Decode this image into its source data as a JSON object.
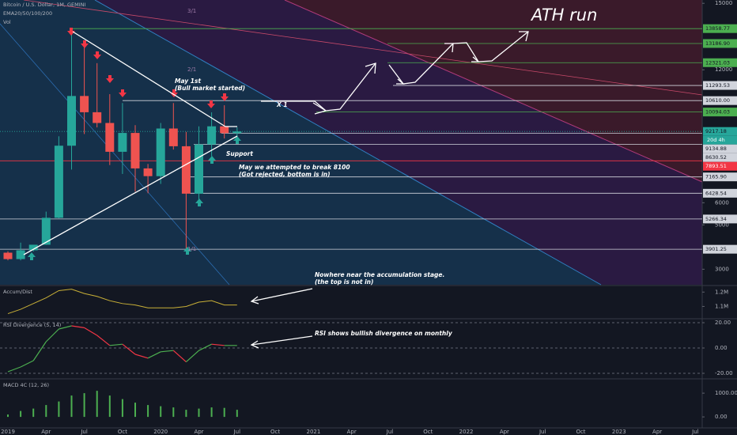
{
  "header": {
    "symbol": "Bitcoin / U.S. Dollar, 1M, GEMINI",
    "ema": "EMA20/50/100/200",
    "vol": "Vol"
  },
  "annotations": {
    "ath": "ATH run",
    "may1": "May 1st",
    "may1b": "(Bull market started)",
    "x1": "X 1",
    "support": "Support",
    "may2": "May we attempted to break 8100",
    "may2b": "(Got rejected, bottom is in)",
    "accum": "Nowhere near the accumulation stage.",
    "accumb": "(the top is not in)",
    "rsi": "RSI shows bullish divergence on monthly",
    "fib3": "3/1",
    "fib2": "2/1",
    "fib1": "1/1"
  },
  "chart_data": [
    {
      "type": "candlestick",
      "x": [
        "2019-01",
        "2019-02",
        "2019-03",
        "2019-04",
        "2019-05",
        "2019-06",
        "2019-07",
        "2019-08",
        "2019-09",
        "2019-10",
        "2019-11",
        "2019-12",
        "2020-01",
        "2020-02",
        "2020-03",
        "2020-04",
        "2020-05",
        "2020-06",
        "2020-07"
      ],
      "open": [
        3746,
        3457,
        3854,
        4105,
        5320,
        8574,
        10818,
        10085,
        9600,
        8300,
        9150,
        7550,
        7200,
        9350,
        8550,
        6410,
        8630,
        9450,
        9140
      ],
      "high": [
        3810,
        4200,
        4100,
        5600,
        9000,
        13880,
        13200,
        12300,
        10900,
        10500,
        9500,
        7750,
        9600,
        10500,
        9200,
        9450,
        10080,
        10400,
        9400
      ],
      "low": [
        3400,
        3400,
        3800,
        4100,
        5300,
        7500,
        9100,
        9400,
        7700,
        7300,
        6500,
        6430,
        6850,
        8400,
        3850,
        6150,
        8100,
        8900,
        8900
      ],
      "close": [
        3457,
        3854,
        4105,
        5320,
        8574,
        10818,
        10085,
        9600,
        8300,
        9150,
        7550,
        7200,
        9350,
        8550,
        6410,
        8630,
        9450,
        9140,
        9217
      ],
      "up_color": "#26a69a",
      "down_color": "#ef5350",
      "ylim": [
        2300,
        15150
      ],
      "yticks": [
        3000,
        5000,
        6000,
        12000,
        15000
      ],
      "xticks": [
        {
          "value": "2019-01",
          "label": "2019"
        },
        {
          "value": "2019-04",
          "label": "Apr"
        },
        {
          "value": "2019-07",
          "label": "Jul"
        },
        {
          "value": "2019-10",
          "label": "Oct"
        },
        {
          "value": "2020-01",
          "label": "2020"
        },
        {
          "value": "2020-04",
          "label": "Apr"
        },
        {
          "value": "2020-07",
          "label": "Jul"
        },
        {
          "value": "2020-10",
          "label": "Oct"
        },
        {
          "value": "2021-01",
          "label": "2021"
        },
        {
          "value": "2021-04",
          "label": "Apr"
        },
        {
          "value": "2021-07",
          "label": "Jul"
        },
        {
          "value": "2021-10",
          "label": "Oct"
        },
        {
          "value": "2022-01",
          "label": "2022"
        },
        {
          "value": "2022-04",
          "label": "Apr"
        },
        {
          "value": "2022-07",
          "label": "Jul"
        },
        {
          "value": "2022-10",
          "label": "Oct"
        },
        {
          "value": "2023-01",
          "label": "2023"
        },
        {
          "value": "2023-04",
          "label": "Apr"
        },
        {
          "value": "2023-07",
          "label": "Jul"
        }
      ],
      "levels": [
        {
          "value": 13858.77,
          "label": "13858.77",
          "color": "#4caf50"
        },
        {
          "value": 13186.9,
          "label": "13186.90",
          "color": "#4caf50"
        },
        {
          "value": 12321.03,
          "label": "12321.03",
          "color": "#4caf50"
        },
        {
          "value": 11293.53,
          "label": "11293.53",
          "color": "#d1d4dc"
        },
        {
          "value": 10610.0,
          "label": "10610.00",
          "color": "#d1d4dc"
        },
        {
          "value": 10094.03,
          "label": "10094.03",
          "color": "#4caf50"
        },
        {
          "value": 9217.18,
          "label": "9217.18",
          "color": "#26a69a"
        },
        {
          "value": 9134.88,
          "label": "9134.88",
          "color": "#d1d4dc"
        },
        {
          "value": 8630.52,
          "label": "8630.52",
          "color": "#d1d4dc"
        },
        {
          "value": 7893.51,
          "label": "7893.51",
          "color": "#f23645"
        },
        {
          "value": 7165.9,
          "label": "7165.90",
          "color": "#d1d4dc"
        },
        {
          "value": 6428.54,
          "label": "6428.54",
          "color": "#d1d4dc"
        },
        {
          "value": 5266.34,
          "label": "5266.34",
          "color": "#d1d4dc"
        },
        {
          "value": 3901.25,
          "label": "3901.25",
          "color": "#d1d4dc"
        }
      ],
      "countdown": "20d 4h"
    },
    {
      "type": "line",
      "title": "Accum/Dist",
      "color": "#c9b037",
      "x": [
        "2019-01",
        "2019-02",
        "2019-03",
        "2019-04",
        "2019-05",
        "2019-06",
        "2019-07",
        "2019-08",
        "2019-09",
        "2019-10",
        "2019-11",
        "2019-12",
        "2020-01",
        "2020-02",
        "2020-03",
        "2020-04",
        "2020-05",
        "2020-06",
        "2020-07"
      ],
      "values": [
        1.05,
        1.08,
        1.12,
        1.16,
        1.21,
        1.22,
        1.19,
        1.17,
        1.14,
        1.12,
        1.11,
        1.09,
        1.09,
        1.09,
        1.1,
        1.13,
        1.14,
        1.11,
        1.11
      ],
      "ylim": [
        1.02,
        1.24
      ],
      "yticks": [
        {
          "value": 1.2,
          "label": "1.2M"
        },
        {
          "value": 1.1,
          "label": "1.1M"
        }
      ]
    },
    {
      "type": "line",
      "title": "RSI Divergence (5, 14)",
      "color": "#4caf50",
      "down_color": "#f23645",
      "x": [
        "2019-01",
        "2019-02",
        "2019-03",
        "2019-04",
        "2019-05",
        "2019-06",
        "2019-07",
        "2019-08",
        "2019-09",
        "2019-10",
        "2019-11",
        "2019-12",
        "2020-01",
        "2020-02",
        "2020-03",
        "2020-04",
        "2020-05",
        "2020-06",
        "2020-07"
      ],
      "values": [
        -18.75,
        -15,
        -10,
        5,
        15,
        17.5,
        16,
        10,
        2,
        3,
        -5,
        -8,
        -3,
        -2,
        -11,
        -2,
        3,
        2,
        2
      ],
      "ylim": [
        -23.75,
        22.5
      ],
      "yticks": [
        {
          "value": 20,
          "label": "20.00"
        },
        {
          "value": 0,
          "label": "0.00"
        },
        {
          "value": -20,
          "label": "-20.00"
        }
      ],
      "grid": "zero"
    },
    {
      "type": "bar",
      "title": "MACD 4C (12, 26)",
      "color": "#4caf50",
      "x": [
        "2019-01",
        "2019-02",
        "2019-03",
        "2019-04",
        "2019-05",
        "2019-06",
        "2019-07",
        "2019-08",
        "2019-09",
        "2019-10",
        "2019-11",
        "2019-12",
        "2020-01",
        "2020-02",
        "2020-03",
        "2020-04",
        "2020-05",
        "2020-06",
        "2020-07"
      ],
      "values": [
        100,
        250,
        350,
        500,
        650,
        900,
        1000,
        1100,
        900,
        750,
        600,
        500,
        450,
        400,
        300,
        350,
        400,
        380,
        300
      ],
      "ylim": [
        -430,
        1570
      ],
      "yticks": [
        {
          "value": 1000,
          "label": "1000.00"
        },
        {
          "value": 0,
          "label": "0.00"
        }
      ]
    }
  ]
}
